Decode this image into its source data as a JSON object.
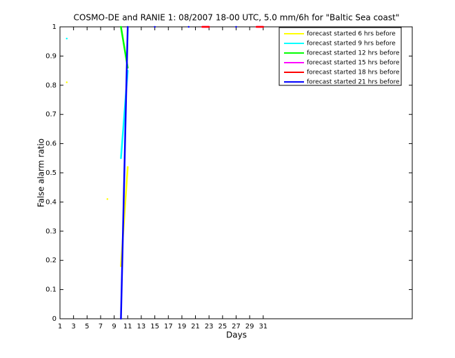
{
  "chart_data": {
    "type": "line",
    "title": "COSMO-DE and RANIE 1: 08/2007 18-00 UTC, 5.0 mm/6h for \"Baltic Sea coast\"",
    "x_label": "Days",
    "y_label": "False alarm ratio",
    "x": [
      1,
      2,
      3,
      4,
      5,
      6,
      7,
      8,
      9,
      10,
      11,
      12,
      13,
      14,
      15,
      16,
      17,
      18,
      19,
      20,
      21,
      22,
      23,
      24,
      25,
      26,
      27,
      28,
      29,
      30,
      31
    ],
    "series": [
      {
        "name": "forecast started 6 hrs before",
        "color": "#ffff00",
        "values": [
          null,
          0.81,
          null,
          null,
          null,
          null,
          null,
          0.41,
          null,
          0.18,
          0.52,
          null,
          null,
          null,
          null,
          null,
          null,
          null,
          null,
          null,
          null,
          null,
          null,
          null,
          null,
          null,
          null,
          null,
          null,
          null,
          null
        ]
      },
      {
        "name": "forecast started 9 hrs before",
        "color": "#00ffff",
        "values": [
          null,
          0.96,
          null,
          null,
          null,
          null,
          null,
          null,
          null,
          0.55,
          0.85,
          null,
          null,
          null,
          null,
          null,
          null,
          null,
          null,
          null,
          null,
          null,
          null,
          null,
          null,
          null,
          null,
          null,
          null,
          null,
          null
        ]
      },
      {
        "name": "forecast started 12 hrs before",
        "color": "#00ff00",
        "values": [
          null,
          null,
          null,
          null,
          null,
          null,
          null,
          null,
          null,
          1,
          0.86,
          null,
          null,
          null,
          null,
          null,
          null,
          null,
          null,
          null,
          null,
          null,
          null,
          null,
          null,
          null,
          null,
          null,
          null,
          null,
          null
        ]
      },
      {
        "name": "forecast started 15 hrs before",
        "color": "#ff00ff",
        "values": [
          null,
          null,
          null,
          null,
          null,
          null,
          null,
          null,
          null,
          null,
          null,
          null,
          null,
          null,
          null,
          null,
          null,
          null,
          null,
          null,
          null,
          1,
          1,
          null,
          null,
          null,
          null,
          null,
          null,
          1,
          1
        ]
      },
      {
        "name": "forecast started 18 hrs before",
        "color": "#ff0000",
        "values": [
          null,
          null,
          null,
          null,
          null,
          null,
          null,
          null,
          null,
          null,
          null,
          null,
          null,
          null,
          null,
          null,
          null,
          null,
          null,
          null,
          null,
          1,
          1,
          null,
          null,
          null,
          null,
          null,
          null,
          1,
          1
        ]
      },
      {
        "name": "forecast started 21 hrs before",
        "color": "#0000ff",
        "values": [
          null,
          null,
          null,
          null,
          null,
          null,
          null,
          null,
          null,
          0,
          1,
          null,
          null,
          null,
          1,
          null,
          null,
          null,
          null,
          1,
          null,
          null,
          null,
          null,
          null,
          null,
          1,
          null,
          null,
          null,
          null
        ]
      }
    ],
    "xlim": [
      1,
      53
    ],
    "xticks": [
      1,
      3,
      5,
      7,
      9,
      11,
      13,
      15,
      17,
      19,
      21,
      23,
      25,
      27,
      29,
      31
    ],
    "ylim": [
      0,
      1
    ],
    "yticks": [
      0,
      0.1,
      0.2,
      0.3,
      0.4,
      0.5,
      0.6,
      0.7,
      0.8,
      0.9,
      1
    ],
    "legend": "top-right"
  }
}
